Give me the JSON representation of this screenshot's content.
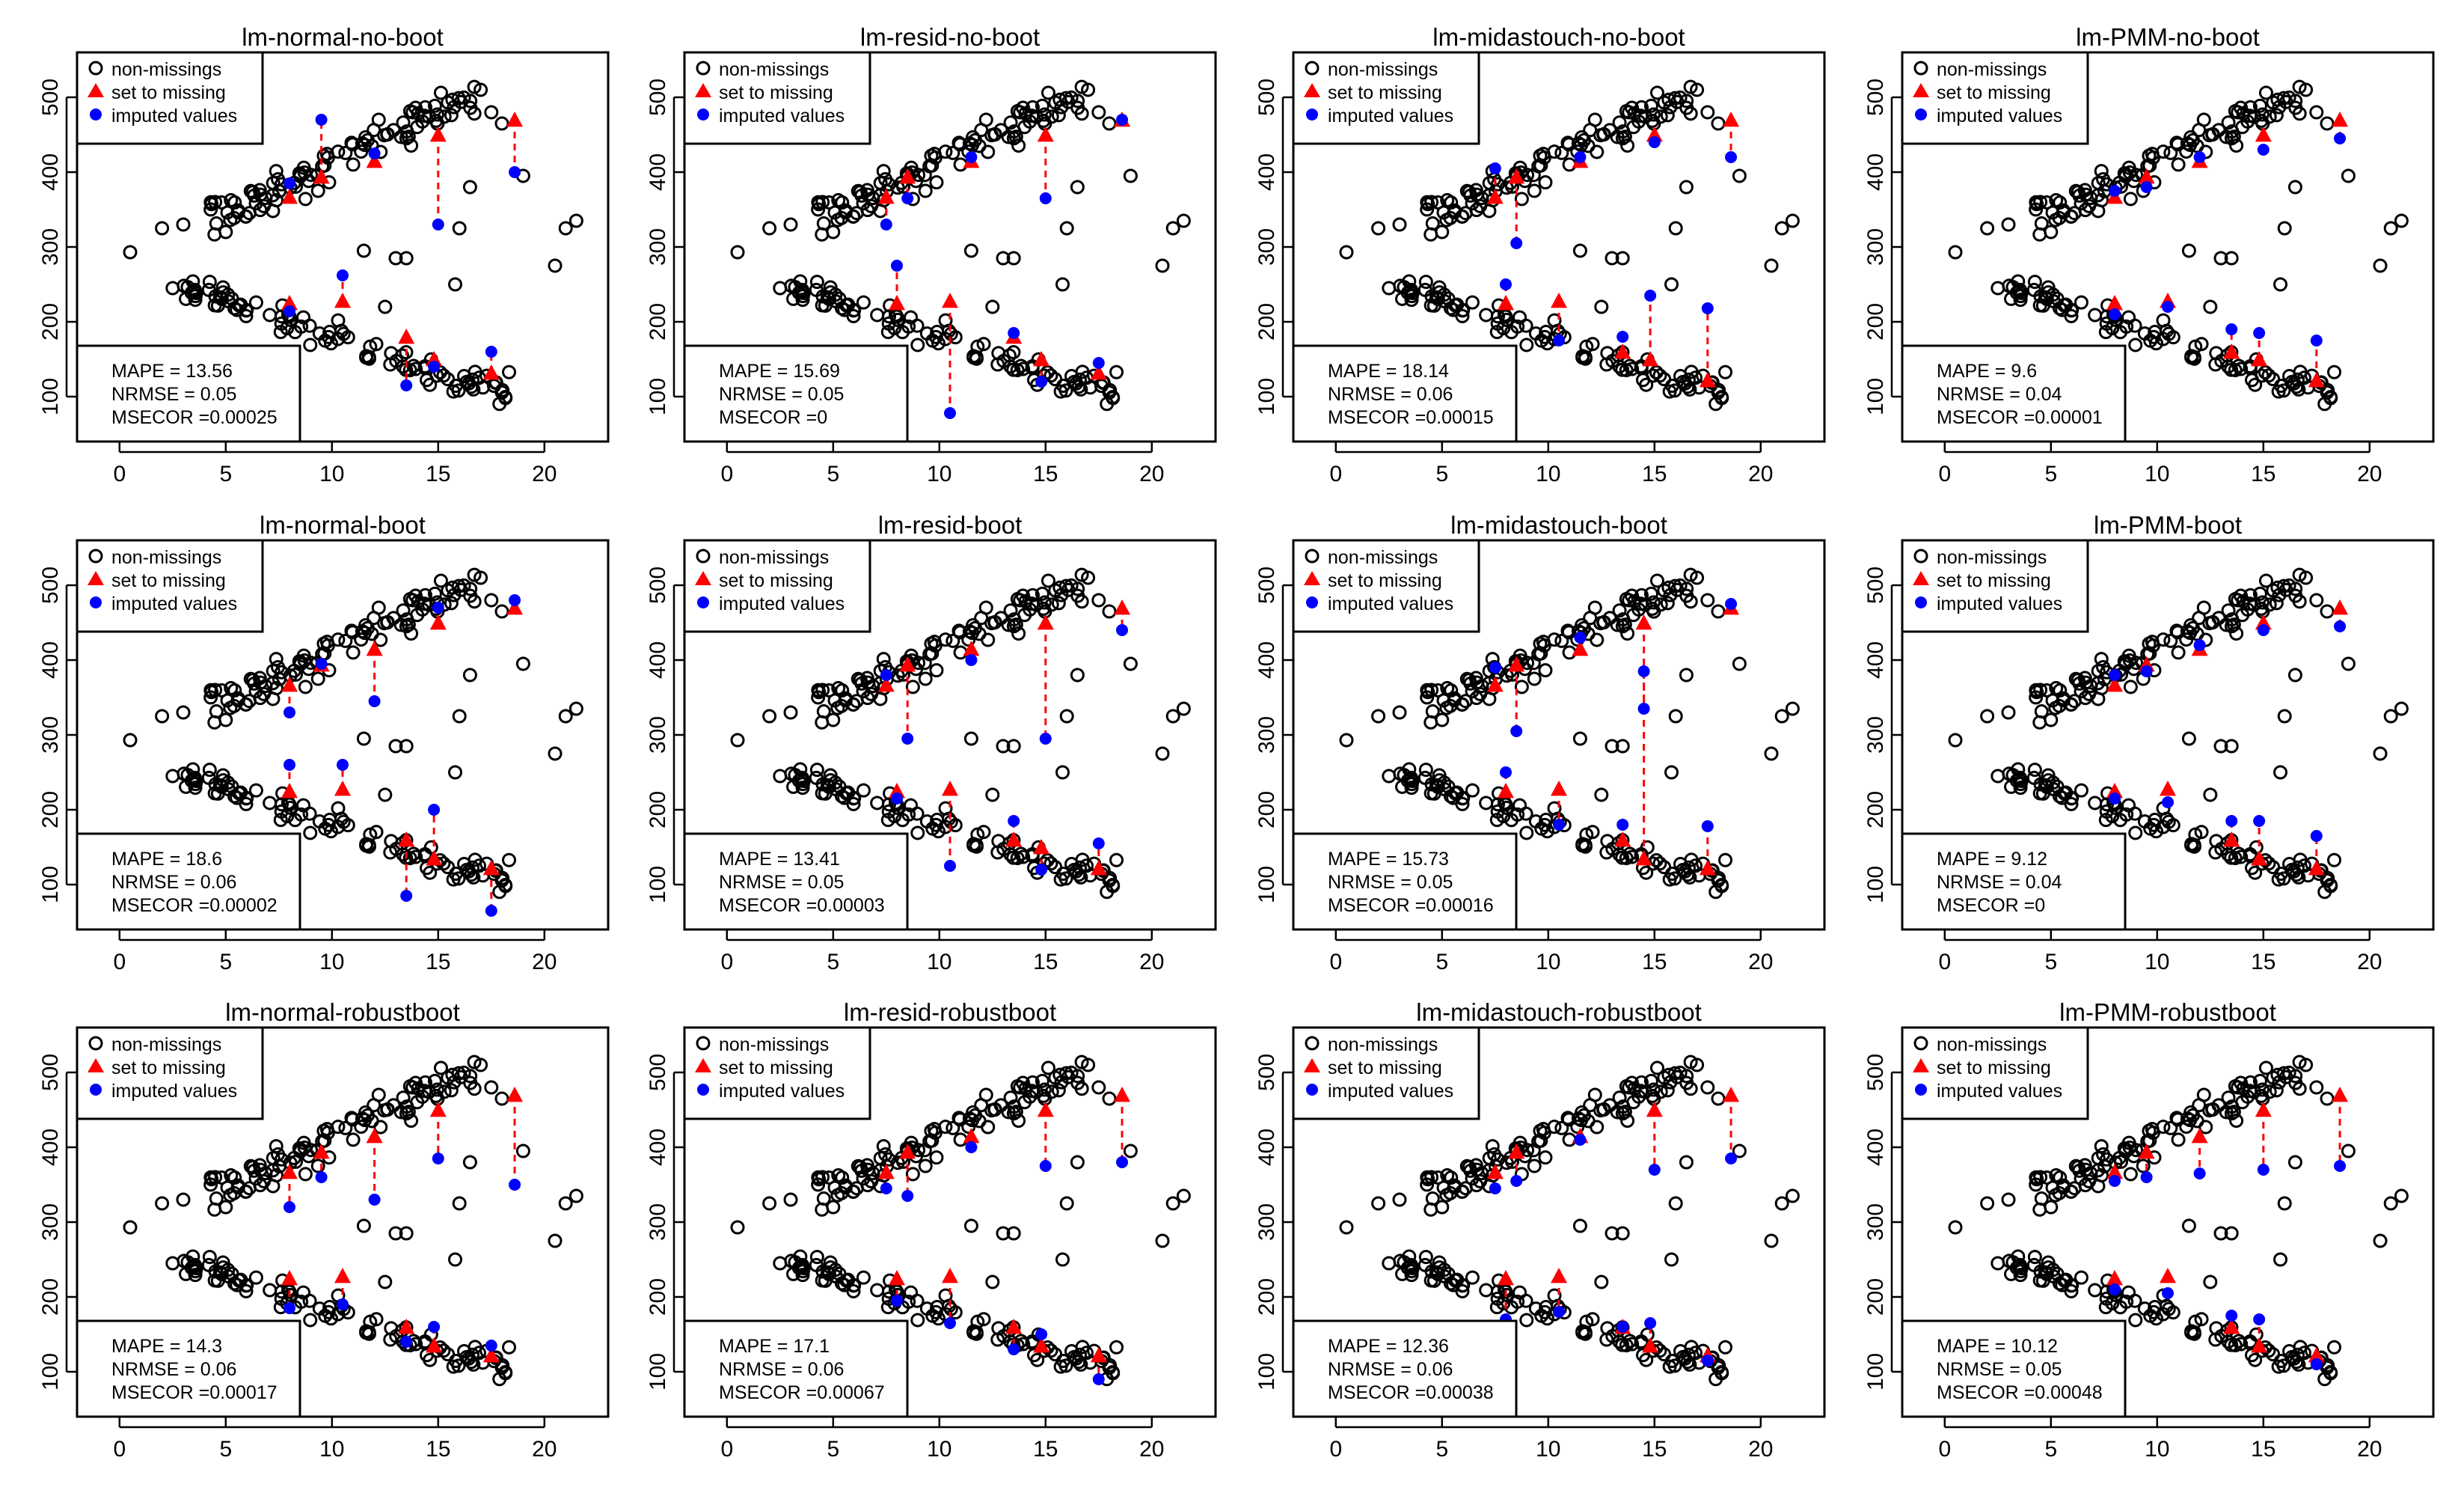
{
  "colors": {
    "observed": "#000000",
    "missing": "#ff0000",
    "imputed": "#0000ff",
    "frame": "#000000"
  },
  "legend": {
    "labels": [
      "non-missings",
      "set to missing",
      "imputed values"
    ]
  },
  "chart_data": [
    {
      "type": "scatter",
      "title": "lm-normal-no-boot",
      "xlim": [
        -2,
        23
      ],
      "ylim": [
        40,
        560
      ],
      "x_ticks": [
        0,
        5,
        10,
        15,
        20
      ],
      "y_ticks": [
        100,
        200,
        300,
        400,
        500
      ],
      "stats": {
        "mape": "MAPE = 13.56",
        "nrmse": "NRMSE = 0.05",
        "msecor": "MSECOR =0.00025"
      },
      "missing": [
        [
          8,
          367
        ],
        [
          9.5,
          394
        ],
        [
          12,
          415
        ],
        [
          15,
          450
        ],
        [
          18.6,
          470
        ],
        [
          8,
          225
        ],
        [
          10.5,
          228
        ],
        [
          13.5,
          180
        ],
        [
          14.8,
          150
        ],
        [
          17.5,
          132
        ]
      ],
      "imputed": [
        [
          8,
          385
        ],
        [
          9.5,
          470
        ],
        [
          12,
          425
        ],
        [
          15,
          330
        ],
        [
          18.6,
          400
        ],
        [
          8,
          214
        ],
        [
          10.5,
          262
        ],
        [
          13.5,
          115
        ],
        [
          14.8,
          140
        ],
        [
          17.5,
          160
        ]
      ]
    },
    {
      "type": "scatter",
      "title": "lm-resid-no-boot",
      "xlim": [
        -2,
        23
      ],
      "ylim": [
        40,
        560
      ],
      "x_ticks": [
        0,
        5,
        10,
        15,
        20
      ],
      "y_ticks": [
        100,
        200,
        300,
        400,
        500
      ],
      "stats": {
        "mape": "MAPE = 15.69",
        "nrmse": "NRMSE = 0.05",
        "msecor": "MSECOR =0"
      },
      "missing": [
        [
          7.5,
          367
        ],
        [
          8.5,
          394
        ],
        [
          11.5,
          415
        ],
        [
          15,
          450
        ],
        [
          18.6,
          470
        ],
        [
          8,
          225
        ],
        [
          10.5,
          228
        ],
        [
          13.5,
          180
        ],
        [
          14.8,
          150
        ],
        [
          17.5,
          132
        ]
      ],
      "imputed": [
        [
          7.5,
          330
        ],
        [
          8.5,
          365
        ],
        [
          11.5,
          420
        ],
        [
          15,
          365
        ],
        [
          18.6,
          470
        ],
        [
          8,
          275
        ],
        [
          10.5,
          78
        ],
        [
          13.5,
          185
        ],
        [
          14.8,
          120
        ],
        [
          17.5,
          145
        ]
      ]
    },
    {
      "type": "scatter",
      "title": "lm-midastouch-no-boot",
      "xlim": [
        -2,
        23
      ],
      "ylim": [
        40,
        560
      ],
      "x_ticks": [
        0,
        5,
        10,
        15,
        20
      ],
      "y_ticks": [
        100,
        200,
        300,
        400,
        500
      ],
      "stats": {
        "mape": "MAPE = 18.14",
        "nrmse": "NRMSE = 0.06",
        "msecor": "MSECOR =0.00015"
      },
      "missing": [
        [
          7.5,
          367
        ],
        [
          8.5,
          394
        ],
        [
          11.5,
          415
        ],
        [
          15,
          450
        ],
        [
          18.6,
          470
        ],
        [
          8,
          225
        ],
        [
          10.5,
          228
        ],
        [
          13.5,
          160
        ],
        [
          14.8,
          150
        ],
        [
          17.5,
          122
        ]
      ],
      "imputed": [
        [
          7.5,
          405
        ],
        [
          8.5,
          305
        ],
        [
          11.5,
          420
        ],
        [
          15,
          440
        ],
        [
          18.6,
          420
        ],
        [
          8,
          250
        ],
        [
          10.5,
          175
        ],
        [
          13.5,
          180
        ],
        [
          14.8,
          235
        ],
        [
          17.5,
          218
        ]
      ]
    },
    {
      "type": "scatter",
      "title": "lm-PMM-no-boot",
      "xlim": [
        -2,
        23
      ],
      "ylim": [
        40,
        560
      ],
      "x_ticks": [
        0,
        5,
        10,
        15,
        20
      ],
      "y_ticks": [
        100,
        200,
        300,
        400,
        500
      ],
      "stats": {
        "mape": "MAPE = 9.6",
        "nrmse": "NRMSE = 0.04",
        "msecor": "MSECOR =0.00001"
      },
      "missing": [
        [
          8,
          367
        ],
        [
          9.5,
          394
        ],
        [
          12,
          415
        ],
        [
          15,
          450
        ],
        [
          18.6,
          470
        ],
        [
          8,
          225
        ],
        [
          10.5,
          228
        ],
        [
          13.5,
          160
        ],
        [
          14.8,
          150
        ],
        [
          17.5,
          122
        ]
      ],
      "imputed": [
        [
          8,
          375
        ],
        [
          9.5,
          380
        ],
        [
          12,
          420
        ],
        [
          15,
          430
        ],
        [
          18.6,
          445
        ],
        [
          8,
          210
        ],
        [
          10.5,
          220
        ],
        [
          13.5,
          190
        ],
        [
          14.8,
          185
        ],
        [
          17.5,
          175
        ]
      ]
    },
    {
      "type": "scatter",
      "title": "lm-normal-boot",
      "xlim": [
        -2,
        23
      ],
      "ylim": [
        40,
        560
      ],
      "x_ticks": [
        0,
        5,
        10,
        15,
        20
      ],
      "y_ticks": [
        100,
        200,
        300,
        400,
        500
      ],
      "stats": {
        "mape": "MAPE = 18.6",
        "nrmse": "NRMSE = 0.06",
        "msecor": "MSECOR =0.00002"
      },
      "missing": [
        [
          8,
          367
        ],
        [
          9.5,
          394
        ],
        [
          12,
          415
        ],
        [
          15,
          450
        ],
        [
          18.6,
          470
        ],
        [
          8,
          225
        ],
        [
          10.5,
          228
        ],
        [
          13.5,
          160
        ],
        [
          14.8,
          135
        ],
        [
          17.5,
          122
        ]
      ],
      "imputed": [
        [
          8,
          330
        ],
        [
          9.5,
          395
        ],
        [
          12,
          345
        ],
        [
          15,
          470
        ],
        [
          18.6,
          480
        ],
        [
          8,
          260
        ],
        [
          10.5,
          260
        ],
        [
          13.5,
          85
        ],
        [
          14.8,
          200
        ],
        [
          17.5,
          65
        ]
      ]
    },
    {
      "type": "scatter",
      "title": "lm-resid-boot",
      "xlim": [
        -2,
        23
      ],
      "ylim": [
        40,
        560
      ],
      "x_ticks": [
        0,
        5,
        10,
        15,
        20
      ],
      "y_ticks": [
        100,
        200,
        300,
        400,
        500
      ],
      "stats": {
        "mape": "MAPE = 13.41",
        "nrmse": "NRMSE = 0.05",
        "msecor": "MSECOR =0.00003"
      },
      "missing": [
        [
          7.5,
          367
        ],
        [
          8.5,
          394
        ],
        [
          11.5,
          415
        ],
        [
          15,
          450
        ],
        [
          18.6,
          470
        ],
        [
          8,
          225
        ],
        [
          10.5,
          228
        ],
        [
          13.5,
          160
        ],
        [
          14.8,
          150
        ],
        [
          17.5,
          122
        ]
      ],
      "imputed": [
        [
          7.5,
          380
        ],
        [
          8.5,
          295
        ],
        [
          11.5,
          400
        ],
        [
          15,
          295
        ],
        [
          18.6,
          440
        ],
        [
          8,
          215
        ],
        [
          10.5,
          125
        ],
        [
          13.5,
          185
        ],
        [
          14.8,
          120
        ],
        [
          17.5,
          155
        ]
      ]
    },
    {
      "type": "scatter",
      "title": "lm-midastouch-boot",
      "xlim": [
        -2,
        23
      ],
      "ylim": [
        40,
        560
      ],
      "x_ticks": [
        0,
        5,
        10,
        15,
        20
      ],
      "y_ticks": [
        100,
        200,
        300,
        400,
        500
      ],
      "stats": {
        "mape": "MAPE = 15.73",
        "nrmse": "NRMSE = 0.05",
        "msecor": "MSECOR =0.00016"
      },
      "missing": [
        [
          7.5,
          367
        ],
        [
          8.5,
          394
        ],
        [
          11.5,
          415
        ],
        [
          14.5,
          450
        ],
        [
          18.6,
          470
        ],
        [
          8,
          225
        ],
        [
          10.5,
          228
        ],
        [
          13.5,
          160
        ],
        [
          14.5,
          135
        ],
        [
          17.5,
          122
        ]
      ],
      "imputed": [
        [
          7.5,
          390
        ],
        [
          8.5,
          305
        ],
        [
          11.5,
          430
        ],
        [
          14.5,
          335
        ],
        [
          18.6,
          475
        ],
        [
          8,
          250
        ],
        [
          10.5,
          180
        ],
        [
          13.5,
          180
        ],
        [
          14.5,
          385
        ],
        [
          17.5,
          178
        ]
      ]
    },
    {
      "type": "scatter",
      "title": "lm-PMM-boot",
      "xlim": [
        -2,
        23
      ],
      "ylim": [
        40,
        560
      ],
      "x_ticks": [
        0,
        5,
        10,
        15,
        20
      ],
      "y_ticks": [
        100,
        200,
        300,
        400,
        500
      ],
      "stats": {
        "mape": "MAPE = 9.12",
        "nrmse": "NRMSE = 0.04",
        "msecor": "MSECOR =0"
      },
      "missing": [
        [
          8,
          367
        ],
        [
          9.5,
          394
        ],
        [
          12,
          415
        ],
        [
          15,
          450
        ],
        [
          18.6,
          470
        ],
        [
          8,
          225
        ],
        [
          10.5,
          228
        ],
        [
          13.5,
          160
        ],
        [
          14.8,
          135
        ],
        [
          17.5,
          122
        ]
      ],
      "imputed": [
        [
          8,
          380
        ],
        [
          9.5,
          385
        ],
        [
          12,
          420
        ],
        [
          15,
          440
        ],
        [
          18.6,
          445
        ],
        [
          8,
          215
        ],
        [
          10.5,
          210
        ],
        [
          13.5,
          185
        ],
        [
          14.8,
          185
        ],
        [
          17.5,
          165
        ]
      ]
    },
    {
      "type": "scatter",
      "title": "lm-normal-robustboot",
      "xlim": [
        -2,
        23
      ],
      "ylim": [
        40,
        560
      ],
      "x_ticks": [
        0,
        5,
        10,
        15,
        20
      ],
      "y_ticks": [
        100,
        200,
        300,
        400,
        500
      ],
      "stats": {
        "mape": "MAPE = 14.3",
        "nrmse": "NRMSE = 0.06",
        "msecor": "MSECOR =0.00017"
      },
      "missing": [
        [
          8,
          367
        ],
        [
          9.5,
          394
        ],
        [
          12,
          415
        ],
        [
          15,
          450
        ],
        [
          18.6,
          470
        ],
        [
          8,
          225
        ],
        [
          10.5,
          228
        ],
        [
          13.5,
          160
        ],
        [
          14.8,
          135
        ],
        [
          17.5,
          122
        ]
      ],
      "imputed": [
        [
          8,
          320
        ],
        [
          9.5,
          360
        ],
        [
          12,
          330
        ],
        [
          15,
          385
        ],
        [
          18.6,
          350
        ],
        [
          8,
          185
        ],
        [
          10.5,
          190
        ],
        [
          13.5,
          140
        ],
        [
          14.8,
          160
        ],
        [
          17.5,
          135
        ]
      ]
    },
    {
      "type": "scatter",
      "title": "lm-resid-robustboot",
      "xlim": [
        -2,
        23
      ],
      "ylim": [
        40,
        560
      ],
      "x_ticks": [
        0,
        5,
        10,
        15,
        20
      ],
      "y_ticks": [
        100,
        200,
        300,
        400,
        500
      ],
      "stats": {
        "mape": "MAPE = 17.1",
        "nrmse": "NRMSE = 0.06",
        "msecor": "MSECOR =0.00067"
      },
      "missing": [
        [
          7.5,
          367
        ],
        [
          8.5,
          394
        ],
        [
          11.5,
          415
        ],
        [
          15,
          450
        ],
        [
          18.6,
          470
        ],
        [
          8,
          225
        ],
        [
          10.5,
          228
        ],
        [
          13.5,
          160
        ],
        [
          14.8,
          135
        ],
        [
          17.5,
          122
        ]
      ],
      "imputed": [
        [
          7.5,
          345
        ],
        [
          8.5,
          335
        ],
        [
          11.5,
          400
        ],
        [
          15,
          375
        ],
        [
          18.6,
          380
        ],
        [
          8,
          195
        ],
        [
          10.5,
          165
        ],
        [
          13.5,
          130
        ],
        [
          14.8,
          150
        ],
        [
          17.5,
          90
        ]
      ]
    },
    {
      "type": "scatter",
      "title": "lm-midastouch-robustboot",
      "xlim": [
        -2,
        23
      ],
      "ylim": [
        40,
        560
      ],
      "x_ticks": [
        0,
        5,
        10,
        15,
        20
      ],
      "y_ticks": [
        100,
        200,
        300,
        400,
        500
      ],
      "stats": {
        "mape": "MAPE = 12.36",
        "nrmse": "NRMSE = 0.06",
        "msecor": "MSECOR =0.00038"
      },
      "missing": [
        [
          7.5,
          367
        ],
        [
          8.5,
          394
        ],
        [
          11.5,
          415
        ],
        [
          15,
          450
        ],
        [
          18.6,
          470
        ],
        [
          8,
          225
        ],
        [
          10.5,
          228
        ],
        [
          13.5,
          160
        ],
        [
          14.8,
          135
        ],
        [
          17.5,
          122
        ]
      ],
      "imputed": [
        [
          7.5,
          345
        ],
        [
          8.5,
          355
        ],
        [
          11.5,
          410
        ],
        [
          15,
          370
        ],
        [
          18.6,
          385
        ],
        [
          8,
          170
        ],
        [
          10.5,
          180
        ],
        [
          13.5,
          160
        ],
        [
          14.8,
          165
        ],
        [
          17.5,
          115
        ]
      ]
    },
    {
      "type": "scatter",
      "title": "lm-PMM-robustboot",
      "xlim": [
        -2,
        23
      ],
      "ylim": [
        40,
        560
      ],
      "x_ticks": [
        0,
        5,
        10,
        15,
        20
      ],
      "y_ticks": [
        100,
        200,
        300,
        400,
        500
      ],
      "stats": {
        "mape": "MAPE = 10.12",
        "nrmse": "NRMSE = 0.05",
        "msecor": "MSECOR =0.00048"
      },
      "missing": [
        [
          8,
          367
        ],
        [
          9.5,
          394
        ],
        [
          12,
          415
        ],
        [
          15,
          450
        ],
        [
          18.6,
          470
        ],
        [
          8,
          225
        ],
        [
          10.5,
          228
        ],
        [
          13.5,
          160
        ],
        [
          14.8,
          135
        ],
        [
          17.5,
          122
        ]
      ],
      "imputed": [
        [
          8,
          355
        ],
        [
          9.5,
          360
        ],
        [
          12,
          365
        ],
        [
          15,
          370
        ],
        [
          18.6,
          375
        ],
        [
          8,
          210
        ],
        [
          10.5,
          205
        ],
        [
          13.5,
          175
        ],
        [
          14.8,
          170
        ],
        [
          17.5,
          110
        ]
      ]
    }
  ]
}
